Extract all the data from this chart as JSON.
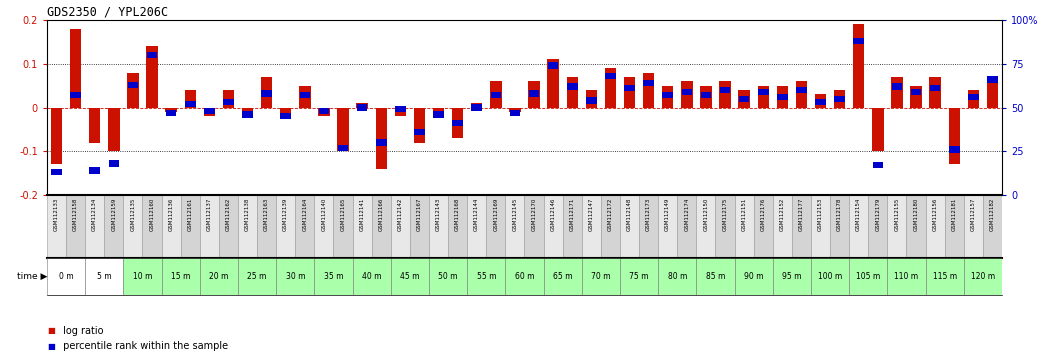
{
  "title": "GDS2350 / YPL206C",
  "samples": [
    "GSM112133",
    "GSM112158",
    "GSM112134",
    "GSM112159",
    "GSM112135",
    "GSM112160",
    "GSM112136",
    "GSM112161",
    "GSM112137",
    "GSM112162",
    "GSM112138",
    "GSM112163",
    "GSM112139",
    "GSM112164",
    "GSM112140",
    "GSM112165",
    "GSM112141",
    "GSM112166",
    "GSM112142",
    "GSM112167",
    "GSM112143",
    "GSM112168",
    "GSM112144",
    "GSM112169",
    "GSM112145",
    "GSM112170",
    "GSM112146",
    "GSM112171",
    "GSM112147",
    "GSM112172",
    "GSM112148",
    "GSM112173",
    "GSM112149",
    "GSM112174",
    "GSM112150",
    "GSM112175",
    "GSM112151",
    "GSM112176",
    "GSM112152",
    "GSM112177",
    "GSM112153",
    "GSM112178",
    "GSM112154",
    "GSM112179",
    "GSM112155",
    "GSM112180",
    "GSM112156",
    "GSM112181",
    "GSM112157",
    "GSM112182"
  ],
  "time_labels": [
    "0 m",
    "5 m",
    "10 m",
    "15 m",
    "20 m",
    "25 m",
    "30 m",
    "35 m",
    "40 m",
    "45 m",
    "50 m",
    "55 m",
    "60 m",
    "65 m",
    "70 m",
    "75 m",
    "80 m",
    "85 m",
    "90 m",
    "95 m",
    "100 m",
    "105 m",
    "110 m",
    "115 m",
    "120 m"
  ],
  "log_ratio": [
    -0.13,
    0.18,
    -0.08,
    -0.1,
    0.08,
    0.14,
    -0.01,
    0.04,
    -0.02,
    0.04,
    -0.01,
    0.07,
    -0.02,
    0.05,
    -0.02,
    -0.1,
    0.01,
    -0.14,
    -0.02,
    -0.08,
    -0.01,
    -0.07,
    0.01,
    0.06,
    -0.01,
    0.06,
    0.11,
    0.07,
    0.04,
    0.09,
    0.07,
    0.08,
    0.05,
    0.06,
    0.05,
    0.06,
    0.04,
    0.05,
    0.05,
    0.06,
    0.03,
    0.04,
    0.19,
    -0.1,
    0.07,
    0.05,
    0.07,
    -0.13,
    0.04,
    0.06
  ],
  "percentile": [
    13,
    57,
    14,
    18,
    63,
    80,
    47,
    52,
    48,
    53,
    46,
    58,
    45,
    57,
    48,
    27,
    50,
    30,
    49,
    36,
    46,
    41,
    50,
    57,
    47,
    58,
    74,
    62,
    54,
    68,
    61,
    64,
    57,
    59,
    57,
    60,
    55,
    59,
    56,
    60,
    53,
    55,
    88,
    17,
    62,
    59,
    61,
    26,
    56,
    66
  ],
  "bar_color": "#cc1100",
  "square_color": "#0000cc",
  "bg_color": "#ffffff",
  "ylim": [
    -0.2,
    0.2
  ],
  "dotted_levels": [
    0.1,
    0.0,
    -0.1
  ],
  "time_bg_colors": [
    "#ffffff",
    "#ffffff",
    "#aaffaa",
    "#aaffaa",
    "#aaffaa",
    "#aaffaa",
    "#aaffaa",
    "#aaffaa",
    "#aaffaa",
    "#aaffaa",
    "#aaffaa",
    "#aaffaa",
    "#aaffaa",
    "#aaffaa",
    "#aaffaa",
    "#aaffaa",
    "#aaffaa",
    "#aaffaa",
    "#aaffaa",
    "#aaffaa",
    "#aaffaa",
    "#aaffaa",
    "#aaffaa",
    "#aaffaa",
    "#aaffaa"
  ]
}
